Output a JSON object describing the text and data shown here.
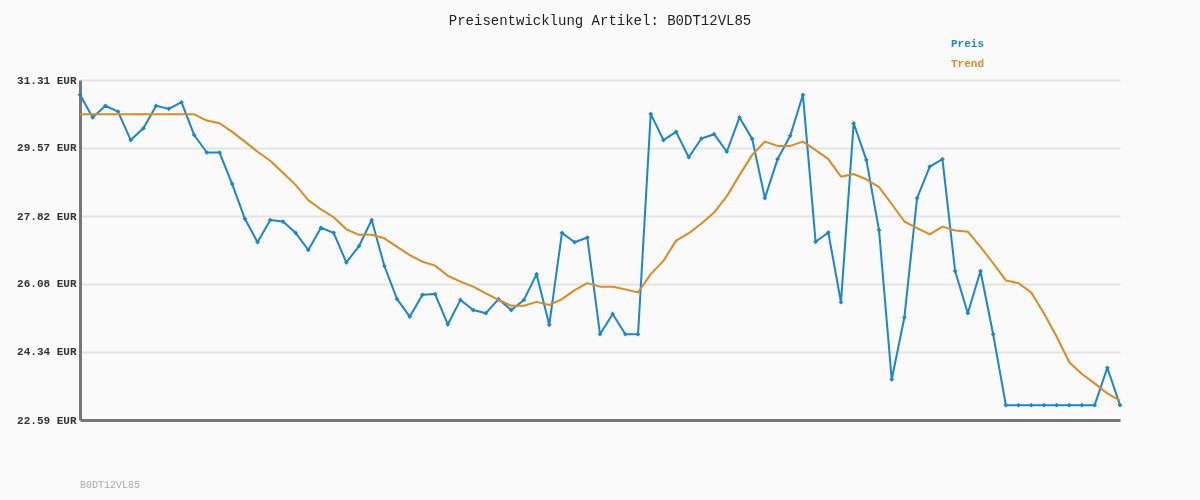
{
  "chart_data": {
    "type": "line",
    "title": "Preisentwicklung Artikel: B0DT12VL85",
    "categories": [
      null,
      null,
      null,
      null,
      null,
      null,
      null,
      null,
      null,
      null,
      null,
      null,
      null,
      null,
      null,
      null,
      null,
      null,
      null,
      null,
      null,
      null,
      null,
      null,
      null,
      null,
      null,
      null,
      null,
      null,
      null,
      null,
      null,
      null,
      null,
      null,
      null,
      null,
      null,
      null,
      null,
      null,
      null,
      null,
      null,
      null,
      null,
      null,
      null,
      null,
      null,
      null,
      null,
      null,
      null,
      null,
      null,
      null,
      null,
      null,
      null,
      null,
      null,
      null,
      null,
      null,
      null,
      null,
      null,
      null,
      null,
      null,
      null,
      null,
      null,
      null,
      null,
      null,
      null,
      null,
      null,
      null,
      null
    ],
    "series": [
      {
        "name": "Preis",
        "color": "#1a86cf",
        "marker": "diamond",
        "values": [
          30.93,
          30.35,
          30.65,
          30.5,
          29.77,
          30.07,
          30.65,
          30.57,
          30.74,
          29.9,
          29.45,
          29.45,
          28.64,
          27.75,
          27.15,
          27.72,
          27.68,
          27.39,
          26.95,
          27.52,
          27.39,
          26.63,
          27.05,
          27.72,
          26.54,
          25.69,
          25.24,
          25.8,
          25.82,
          25.04,
          25.67,
          25.41,
          25.33,
          25.69,
          25.41,
          25.67,
          26.33,
          25.03,
          27.39,
          27.15,
          27.27,
          24.79,
          25.31,
          24.79,
          24.79,
          30.44,
          29.77,
          29.98,
          29.33,
          29.81,
          29.92,
          29.47,
          30.35,
          29.8,
          28.28,
          29.28,
          29.88,
          30.93,
          27.16,
          27.4,
          25.61,
          30.2,
          29.26,
          27.46,
          23.63,
          25.22,
          28.28,
          29.09,
          29.28,
          26.41,
          25.33,
          26.41,
          24.79,
          22.97,
          22.97,
          22.97,
          22.97,
          22.97,
          22.97,
          22.97,
          22.97,
          23.93,
          22.97
        ]
      },
      {
        "name": "Trend",
        "color": "#e08a1e",
        "marker": "none",
        "values": [
          30.43,
          30.43,
          30.43,
          30.43,
          30.43,
          30.43,
          30.43,
          30.43,
          30.43,
          30.43,
          30.27,
          30.2,
          29.98,
          29.73,
          29.47,
          29.24,
          28.93,
          28.62,
          28.23,
          27.99,
          27.79,
          27.48,
          27.34,
          27.34,
          27.25,
          27.03,
          26.82,
          26.65,
          26.55,
          26.29,
          26.14,
          26.01,
          25.84,
          25.67,
          25.52,
          25.52,
          25.62,
          25.54,
          25.69,
          25.92,
          26.1,
          26.01,
          26.01,
          25.94,
          25.86,
          26.33,
          26.67,
          27.19,
          27.38,
          27.63,
          27.91,
          28.33,
          28.87,
          29.39,
          29.73,
          29.62,
          29.62,
          29.73,
          29.51,
          29.28,
          28.83,
          28.9,
          28.76,
          28.56,
          28.13,
          27.68,
          27.51,
          27.35,
          27.55,
          27.45,
          27.42,
          27.03,
          26.61,
          26.17,
          26.1,
          25.86,
          25.33,
          24.73,
          24.07,
          23.77,
          23.53,
          23.27,
          23.09
        ]
      }
    ],
    "ylim": [
      22.59,
      31.31
    ],
    "yticks": [
      {
        "value": 22.59,
        "label": "22.59 EUR"
      },
      {
        "value": 24.34,
        "label": "24.34 EUR"
      },
      {
        "value": 26.08,
        "label": "26.08 EUR"
      },
      {
        "value": 27.82,
        "label": "27.82 EUR"
      },
      {
        "value": 29.57,
        "label": "29.57 EUR"
      },
      {
        "value": 31.31,
        "label": "31.31 EUR"
      }
    ],
    "grid": "y",
    "legend": "top right",
    "tick_labels": "y",
    "annotations": [
      "B0DT12VL85"
    ]
  }
}
